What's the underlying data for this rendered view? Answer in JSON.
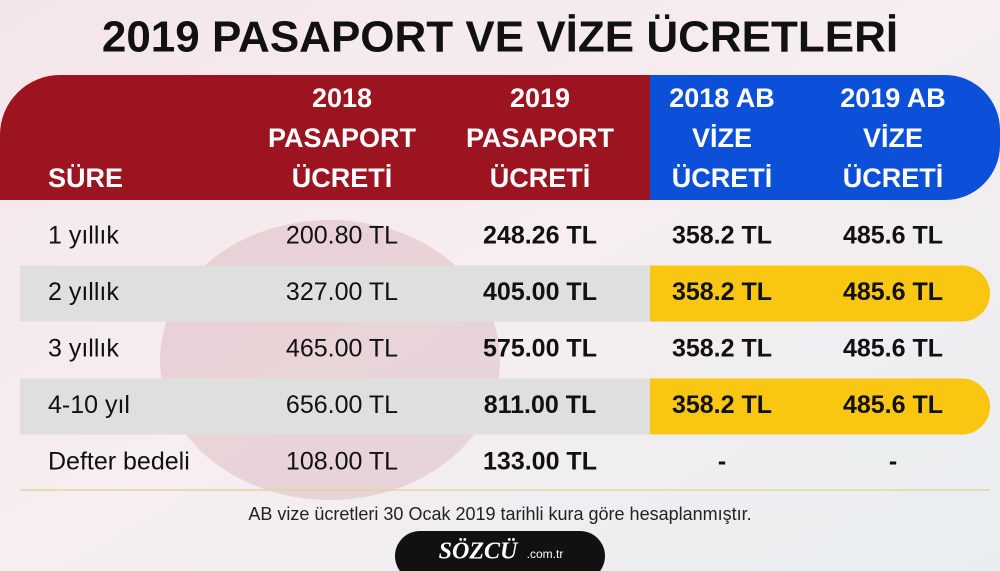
{
  "title": "2019 PASAPORT VE VİZE ÜCRETLERİ",
  "table": {
    "headers": [
      [
        "SÜRE"
      ],
      [
        "2018",
        "PASAPORT",
        "ÜCRETİ"
      ],
      [
        "2019",
        "PASAPORT",
        "ÜCRETİ"
      ],
      [
        "2018 AB",
        "VİZE",
        "ÜCRETİ"
      ],
      [
        "2019 AB",
        "VİZE",
        "ÜCRETİ"
      ]
    ],
    "rows": [
      [
        "1 yıllık",
        "200.80 TL",
        "248.26 TL",
        "358.2 TL",
        "485.6 TL"
      ],
      [
        "2 yıllık",
        "327.00 TL",
        "405.00 TL",
        "358.2 TL",
        "485.6 TL"
      ],
      [
        "3 yıllık",
        "465.00 TL",
        "575.00 TL",
        "358.2 TL",
        "485.6 TL"
      ],
      [
        "4-10 yıl",
        "656.00 TL",
        "811.00 TL",
        "358.2 TL",
        "485.6 TL"
      ],
      [
        "Defter bedeli",
        "108.00 TL",
        "133.00 TL",
        "-",
        "-"
      ]
    ]
  },
  "footnote": "AB vize ücretleri 30 Ocak 2019 tarihli kura göre hesaplanmıştır.",
  "logo": {
    "name": "SÖZCÜ",
    "domain": ".com.tr"
  }
}
